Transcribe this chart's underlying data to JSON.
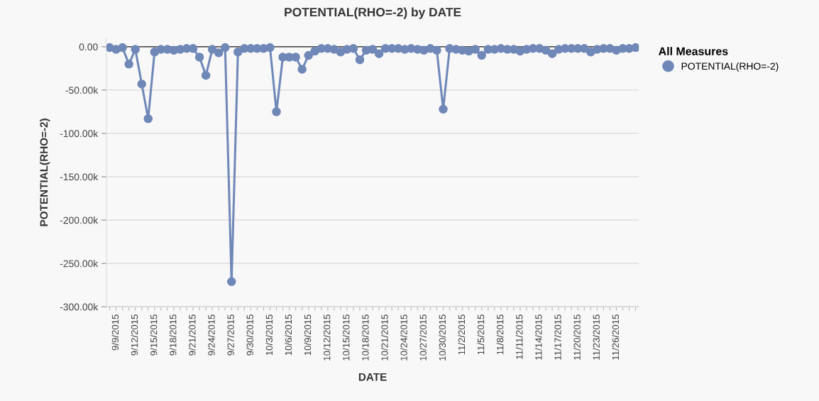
{
  "chart_data": {
    "type": "line",
    "title": "POTENTIAL(RHO=-2) by DATE",
    "xlabel": "DATE",
    "ylabel": "POTENTIAL(RHO=-2)",
    "legend_title": "All Measures",
    "categories": [
      null,
      "9/9/2015",
      null,
      null,
      "9/12/2015",
      null,
      null,
      "9/15/2015",
      null,
      null,
      "9/18/2015",
      null,
      null,
      "9/21/2015",
      null,
      null,
      "9/24/2015",
      null,
      null,
      "9/27/2015",
      null,
      null,
      "9/30/2015",
      null,
      null,
      "10/3/2015",
      null,
      null,
      "10/6/2015",
      null,
      null,
      "10/9/2015",
      null,
      null,
      "10/12/2015",
      null,
      null,
      "10/15/2015",
      null,
      null,
      "10/18/2015",
      null,
      null,
      "10/21/2015",
      null,
      null,
      "10/24/2015",
      null,
      null,
      "10/27/2015",
      null,
      null,
      "10/30/2015",
      null,
      null,
      "11/2/2015",
      null,
      null,
      "11/5/2015",
      null,
      null,
      "11/8/2015",
      null,
      null,
      "11/11/2015",
      null,
      null,
      "11/14/2015",
      null,
      null,
      "11/17/2015",
      null,
      null,
      "11/20/2015",
      null,
      null,
      "11/23/2015",
      null,
      null,
      "11/26/2015",
      null,
      null,
      null
    ],
    "series": [
      {
        "name": "POTENTIAL(RHO=-2)",
        "color": "#7088b8",
        "values": [
          -1000,
          -3000,
          -1000,
          -20000,
          -3000,
          -43000,
          -83000,
          -6000,
          -3000,
          -3000,
          -4000,
          -3000,
          -2000,
          -2000,
          -12000,
          -33000,
          -3000,
          -7000,
          -1000,
          -271000,
          -6000,
          -2000,
          -2000,
          -2000,
          -2000,
          -1000,
          -75000,
          -12000,
          -12000,
          -12000,
          -26000,
          -10000,
          -5000,
          -2000,
          -2000,
          -3000,
          -6000,
          -3000,
          -2000,
          -15000,
          -4000,
          -3000,
          -8000,
          -2000,
          -2000,
          -2000,
          -3000,
          -2000,
          -3000,
          -4000,
          -2000,
          -4000,
          -72000,
          -2000,
          -3000,
          -4000,
          -5000,
          -3000,
          -10000,
          -3000,
          -3000,
          -2000,
          -3000,
          -3000,
          -5000,
          -3000,
          -2000,
          -2000,
          -4000,
          -8000,
          -3000,
          -2000,
          -2000,
          -2000,
          -2000,
          -6000,
          -3000,
          -2000,
          -2000,
          -4000,
          -2000,
          -2000,
          -1000
        ]
      }
    ],
    "ylim": [
      -300000,
      10000
    ],
    "yticks": [
      {
        "value": 0,
        "label": "0.00"
      },
      {
        "value": -50000,
        "label": "-50.00k"
      },
      {
        "value": -100000,
        "label": "-100.00k"
      },
      {
        "value": -150000,
        "label": "-150.00k"
      },
      {
        "value": -200000,
        "label": "-200.00k"
      },
      {
        "value": -250000,
        "label": "-250.00k"
      },
      {
        "value": -300000,
        "label": "-300.00k"
      }
    ],
    "ref_lines": [
      {
        "axis": "y",
        "value": 0,
        "color": "#222222"
      }
    ],
    "grid": "y",
    "legend": "top right",
    "marker": "circle",
    "line_style": "solid"
  }
}
